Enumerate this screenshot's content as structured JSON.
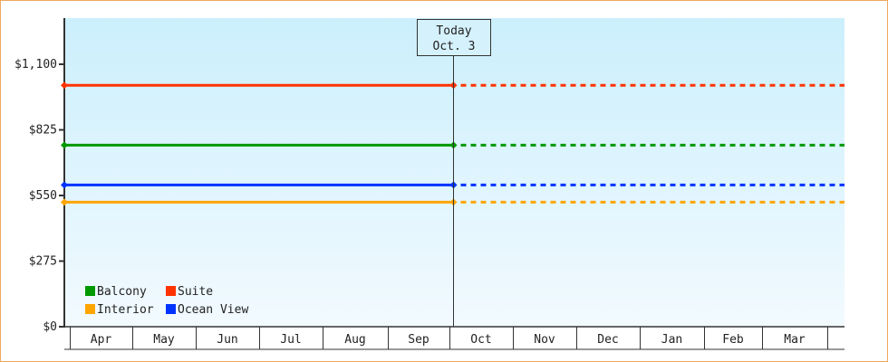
{
  "chart_data": {
    "type": "line",
    "title": "",
    "xlabel": "",
    "ylabel": "",
    "ylim": [
      0,
      1100
    ],
    "y_ticks": [
      "$0",
      "$275",
      "$550",
      "$825",
      "$1,100"
    ],
    "y_tick_values": [
      0,
      275,
      550,
      825,
      1100
    ],
    "x_categories": [
      "Apr",
      "May",
      "Jun",
      "Jul",
      "Aug",
      "Sep",
      "Oct",
      "Nov",
      "Dec",
      "Jan",
      "Feb",
      "Mar"
    ],
    "today_marker": {
      "line1": "Today",
      "line2": "Oct. 3"
    },
    "grid": false,
    "legend_placement": "bottom-left",
    "series": [
      {
        "name": "Balcony",
        "color": "#009900",
        "value": 761,
        "past_range": [
          "Apr",
          "Oct. 3"
        ],
        "projected": true
      },
      {
        "name": "Suite",
        "color": "#ff3300",
        "value": 1012,
        "past_range": [
          "Apr",
          "Oct. 3"
        ],
        "projected": true
      },
      {
        "name": "Interior",
        "color": "#ffa500",
        "value": 522,
        "past_range": [
          "Apr",
          "Oct. 3"
        ],
        "projected": true
      },
      {
        "name": "Ocean View",
        "color": "#0033ff",
        "value": 594,
        "past_range": [
          "Apr",
          "Oct. 3"
        ],
        "projected": true
      }
    ],
    "background_gradient": [
      "#cbeffc",
      "#f2faff"
    ]
  }
}
